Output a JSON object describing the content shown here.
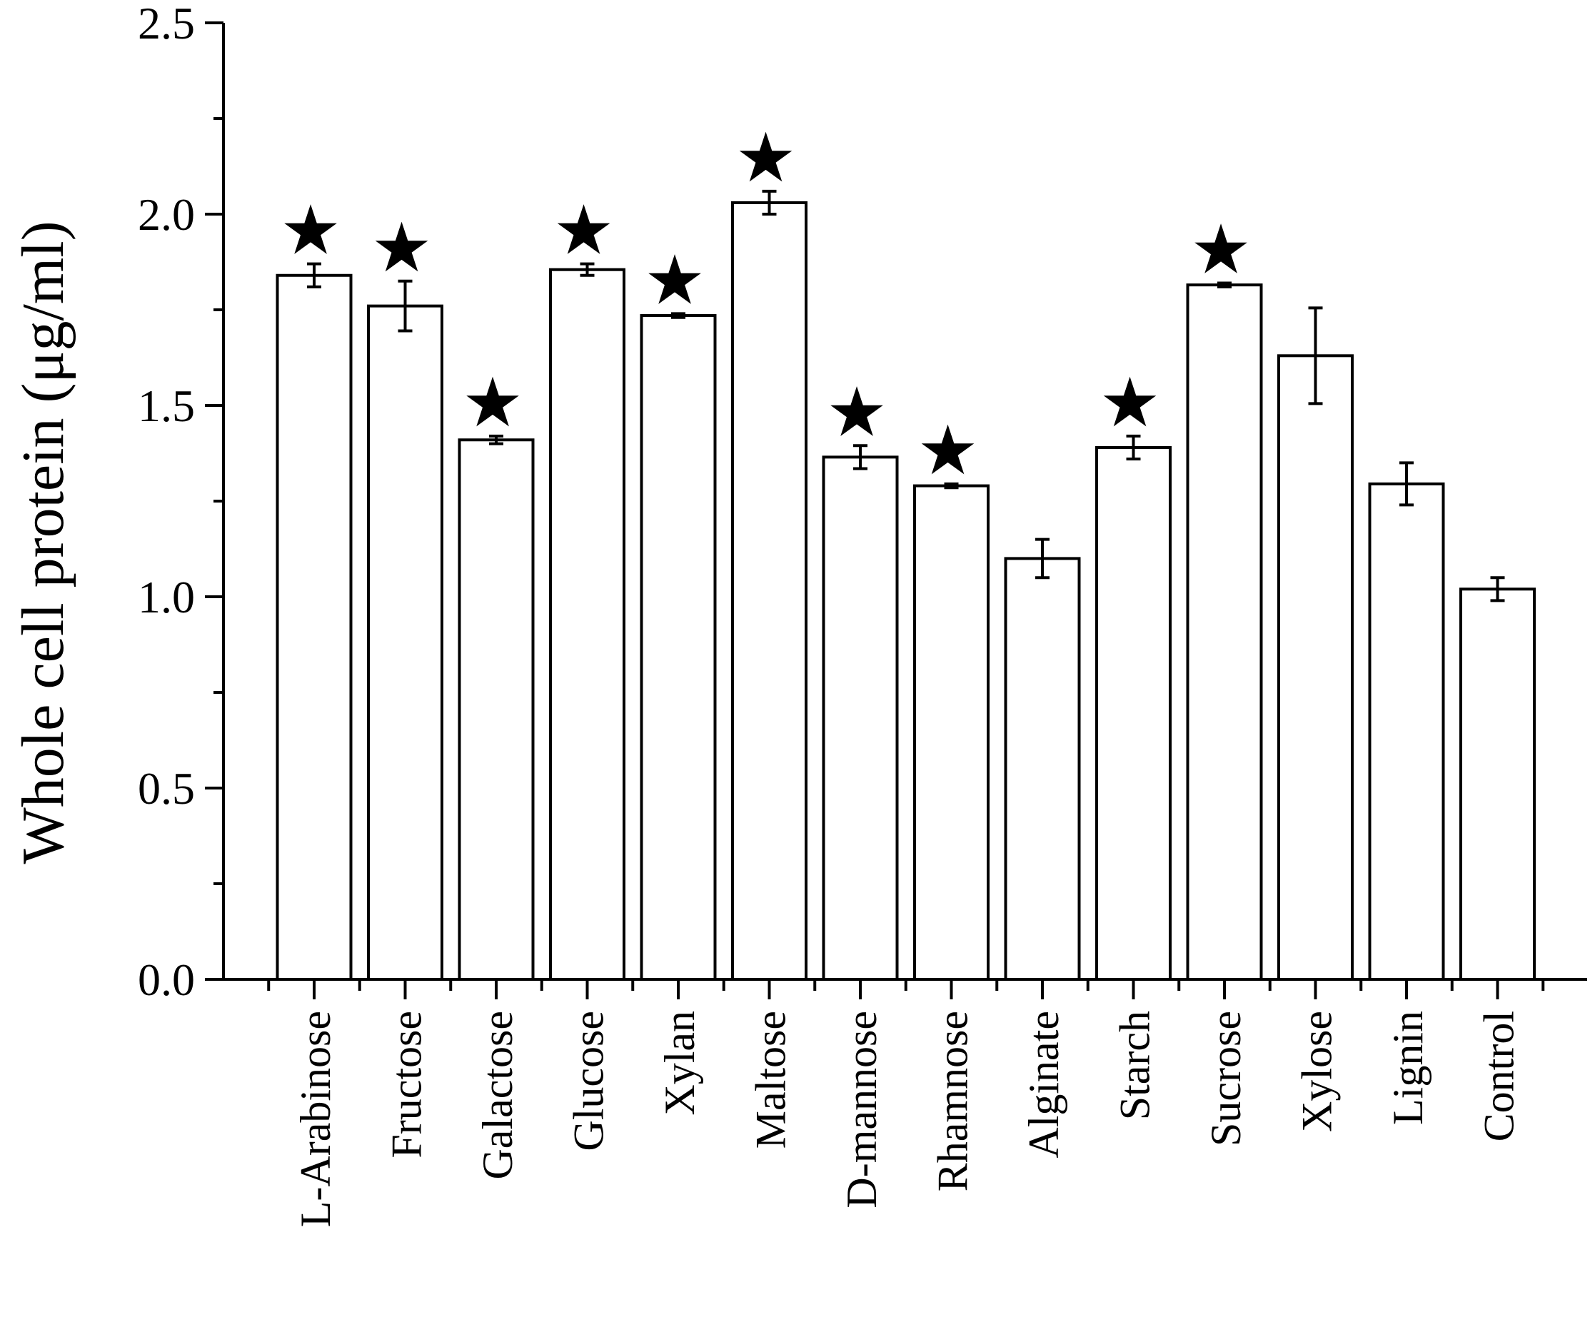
{
  "chart_data": {
    "type": "bar",
    "title": "",
    "xlabel": "",
    "ylabel": "Whole cell protein (μg/ml)",
    "ylim": [
      0,
      2.5
    ],
    "yticks": [
      "0.0",
      "0.5",
      "1.0",
      "1.5",
      "2.0",
      "2.5"
    ],
    "grid": false,
    "legend": "none",
    "categories": [
      "L-Arabinose",
      "Fructose",
      "Galactose",
      "Glucose",
      "Xylan",
      "Maltose",
      "D-mannose",
      "Rhamnose",
      "Alginate",
      "Starch",
      "Sucrose",
      "Xylose",
      "Lignin",
      "Control"
    ],
    "values": [
      1.84,
      1.76,
      1.41,
      1.855,
      1.735,
      2.03,
      1.365,
      1.29,
      1.1,
      1.39,
      1.815,
      1.63,
      1.295,
      1.02
    ],
    "errors": [
      0.03,
      0.065,
      0.01,
      0.015,
      0.005,
      0.03,
      0.03,
      0.005,
      0.05,
      0.03,
      0.005,
      0.125,
      0.055,
      0.03
    ],
    "significant": [
      true,
      true,
      true,
      true,
      true,
      true,
      true,
      true,
      false,
      true,
      true,
      false,
      false,
      false
    ],
    "significance_marker": "★",
    "bar_fill": "#ffffff",
    "bar_stroke": "#000000"
  }
}
